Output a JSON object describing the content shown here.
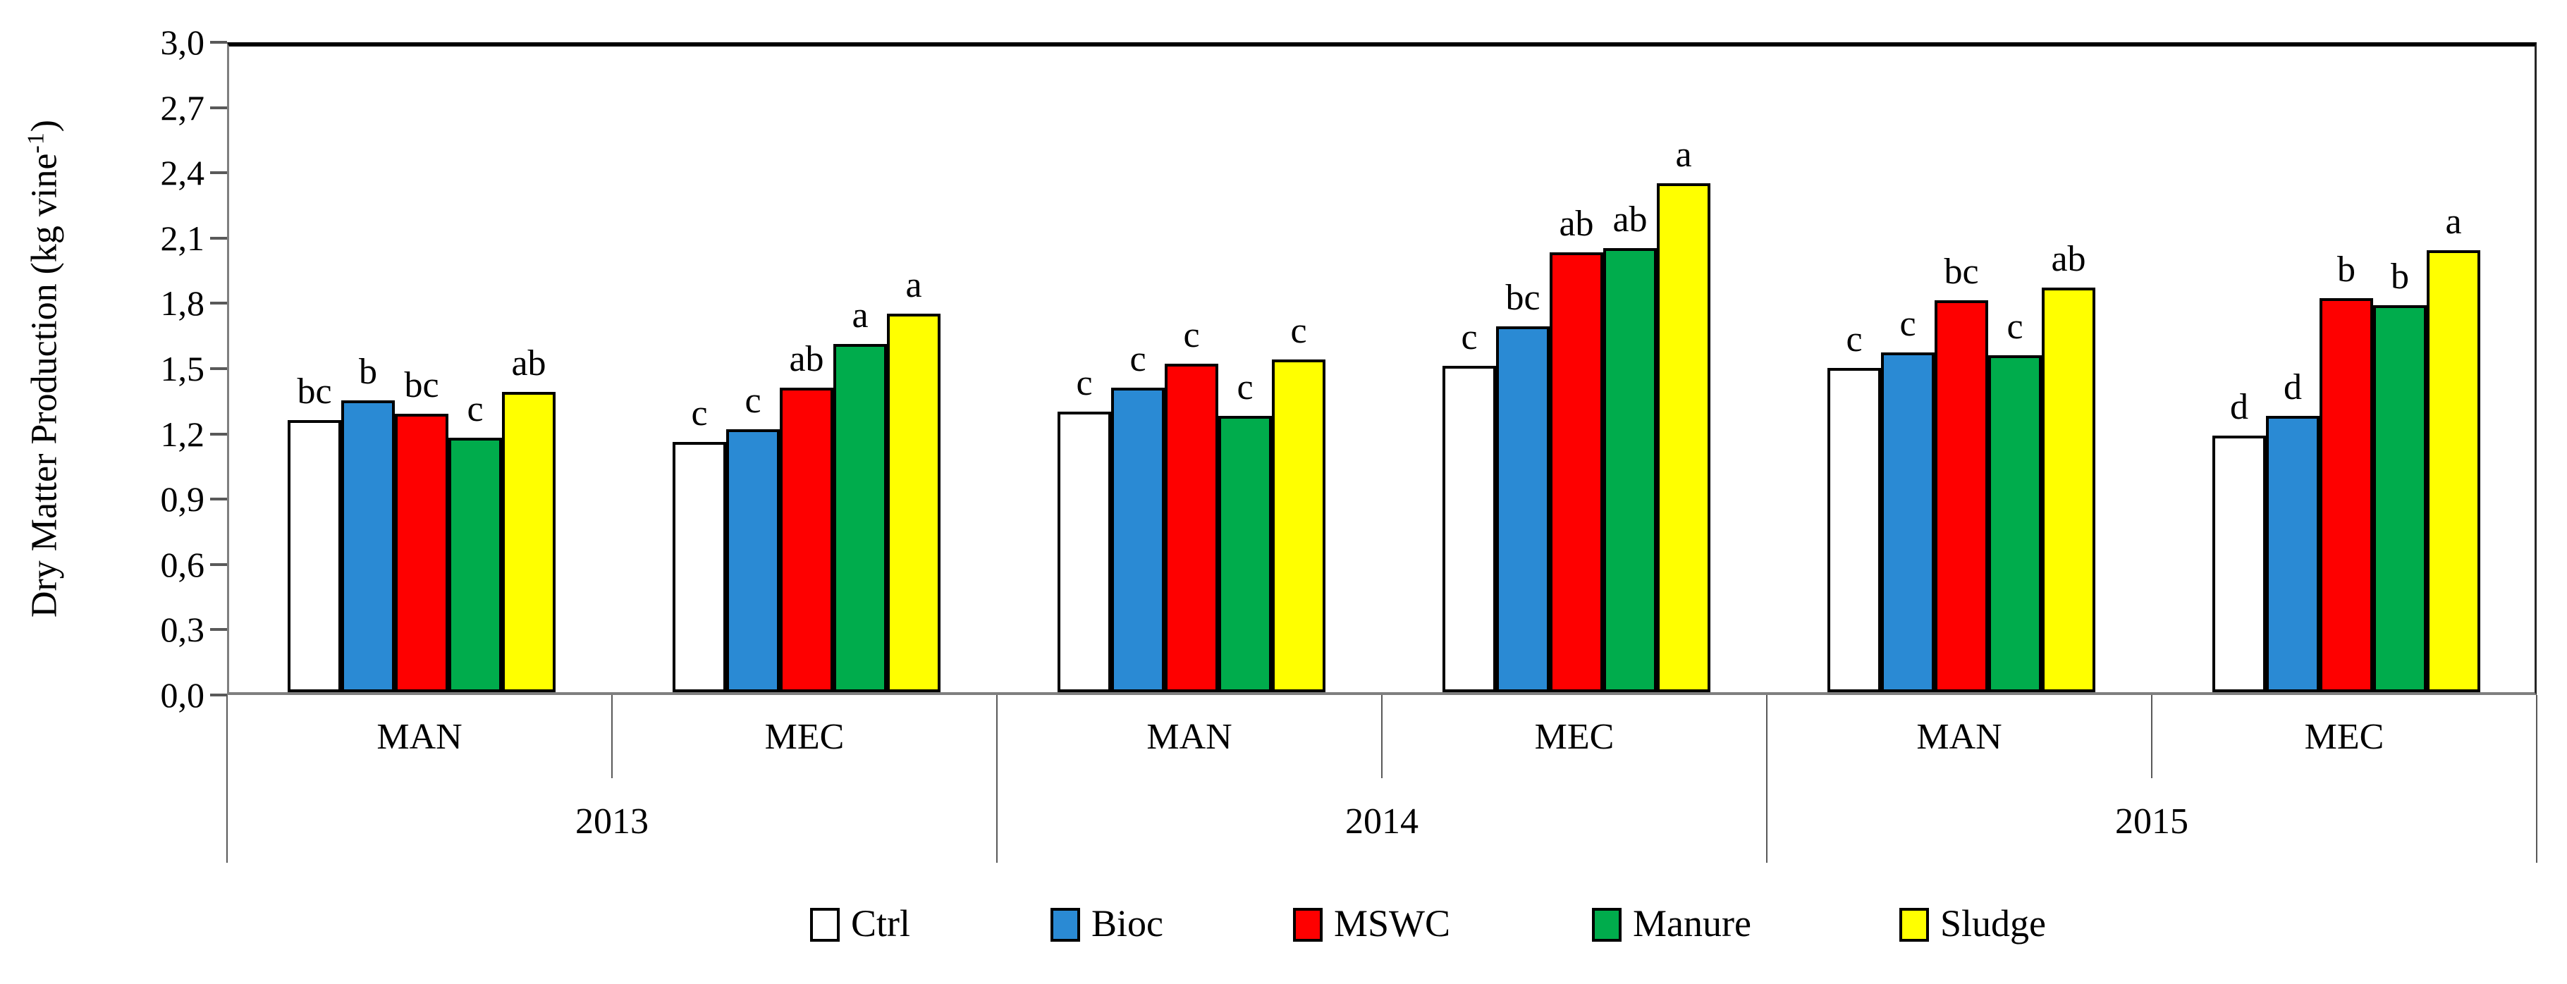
{
  "chart_data": {
    "type": "bar",
    "title": "",
    "ylabel": {
      "prefix": "Dry Matter Production (kg vine",
      "sup": "-1",
      "suffix": ")"
    },
    "ylim": [
      0.0,
      3.0
    ],
    "ytick_step": 0.3,
    "decimal_separator": ",",
    "ytick_labels": [
      "3,0",
      "2,7",
      "2,4",
      "2,1",
      "1,8",
      "1,5",
      "1,2",
      "0,9",
      "0,6",
      "0,3",
      "0,0"
    ],
    "grid": false,
    "legend_position": "bottom",
    "series": [
      {
        "name": "Ctrl",
        "color": "#FFFFFF"
      },
      {
        "name": "Bioc",
        "color": "#2A8AD4"
      },
      {
        "name": "MSWC",
        "color": "#FE0000"
      },
      {
        "name": "Manure",
        "color": "#00AC4C"
      },
      {
        "name": "Sludge",
        "color": "#FFFF00"
      }
    ],
    "years": [
      "2013",
      "2014",
      "2015"
    ],
    "groups": [
      {
        "year": "2013",
        "system": "MAN",
        "values": [
          1.25,
          1.34,
          1.28,
          1.17,
          1.38
        ],
        "letters": [
          "bc",
          "b",
          "bc",
          "c",
          "ab"
        ]
      },
      {
        "year": "2013",
        "system": "MEC",
        "values": [
          1.15,
          1.21,
          1.4,
          1.6,
          1.74
        ],
        "letters": [
          "c",
          "c",
          "ab",
          "a",
          "a"
        ]
      },
      {
        "year": "2014",
        "system": "MAN",
        "values": [
          1.29,
          1.4,
          1.51,
          1.27,
          1.53
        ],
        "letters": [
          "c",
          "c",
          "c",
          "c",
          "c"
        ]
      },
      {
        "year": "2014",
        "system": "MEC",
        "values": [
          1.5,
          1.68,
          2.02,
          2.04,
          2.34
        ],
        "letters": [
          "c",
          "bc",
          "ab",
          "ab",
          "a"
        ]
      },
      {
        "year": "2015",
        "system": "MAN",
        "values": [
          1.49,
          1.56,
          1.8,
          1.55,
          1.86
        ],
        "letters": [
          "c",
          "c",
          "bc",
          "c",
          "ab"
        ]
      },
      {
        "year": "2015",
        "system": "MEC",
        "values": [
          1.18,
          1.27,
          1.81,
          1.78,
          2.03
        ],
        "letters": [
          "d",
          "d",
          "b",
          "b",
          "a"
        ]
      }
    ]
  }
}
